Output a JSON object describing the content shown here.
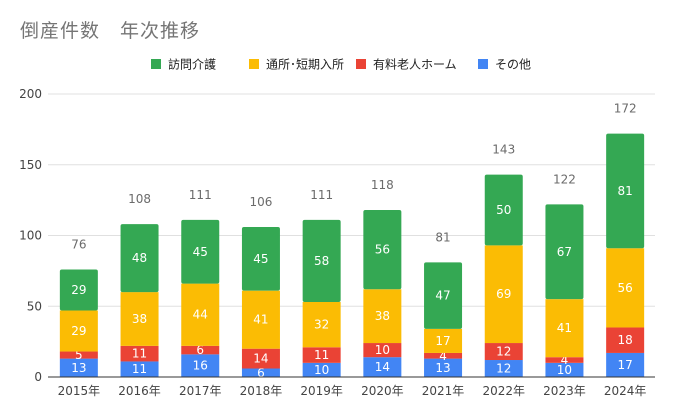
{
  "chart_data": {
    "type": "bar",
    "stacked": true,
    "title": "倒産件数　年次推移",
    "categories": [
      "2015年",
      "2016年",
      "2017年",
      "2018年",
      "2019年",
      "2020年",
      "2021年",
      "2022年",
      "2023年",
      "2024年"
    ],
    "series": [
      {
        "name": "その他",
        "color": "#4285f4",
        "values": [
          13,
          11,
          16,
          6,
          10,
          14,
          13,
          12,
          10,
          17
        ]
      },
      {
        "name": "有料老人ホーム",
        "color": "#ea4335",
        "values": [
          5,
          11,
          6,
          14,
          11,
          10,
          4,
          12,
          4,
          18
        ]
      },
      {
        "name": "通所･短期入所",
        "color": "#fbbc04",
        "values": [
          29,
          38,
          44,
          41,
          32,
          38,
          17,
          69,
          41,
          56
        ]
      },
      {
        "name": "訪問介護",
        "color": "#34a853",
        "values": [
          29,
          48,
          45,
          45,
          58,
          56,
          47,
          50,
          67,
          81
        ]
      }
    ],
    "totals": [
      76,
      108,
      111,
      106,
      111,
      118,
      81,
      143,
      122,
      172
    ],
    "legend_order": [
      "訪問介護",
      "通所･短期入所",
      "有料老人ホーム",
      "その他"
    ],
    "ylim": [
      0,
      200
    ],
    "yticks": [
      0,
      50,
      100,
      150,
      200
    ],
    "grid": true,
    "legend_position": "top"
  }
}
